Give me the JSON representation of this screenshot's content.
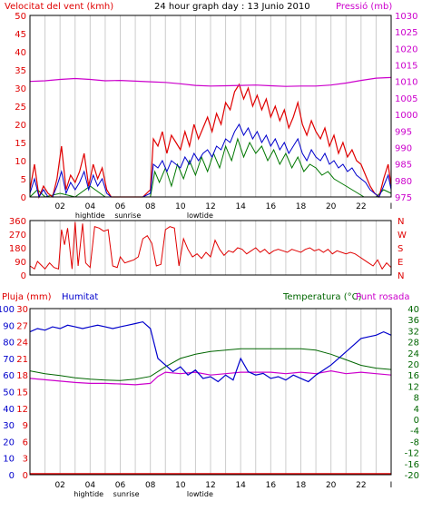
{
  "header": {
    "wind_title": "Velocitat del vent (kmh)",
    "graph_title": "24 hour graph day : 13 Junio 2010",
    "pressure_title": "Pressió (mb)"
  },
  "colors": {
    "wind_speed": "#e00000",
    "wind_avg": "#0000cc",
    "wind_green": "#007700",
    "pressure": "#cc00cc",
    "direction": "#e00000",
    "humidity": "#0000cc",
    "temperature": "#006600",
    "dewpoint": "#cc00cc",
    "rain": "#e00000",
    "grid_vertical": "#cccccc",
    "axis": "#000000"
  },
  "x_ticks": [
    "02",
    "04",
    "06",
    "08",
    "10",
    "12",
    "14",
    "16",
    "18",
    "20",
    "22",
    "I"
  ],
  "tide_labels_top": [
    {
      "text": "hightide",
      "hour": 4.0
    },
    {
      "text": "sunrise",
      "hour": 6.5
    },
    {
      "text": "lowtide",
      "hour": 11.3
    }
  ],
  "tide_labels_bottom": [
    {
      "text": "hightide",
      "hour": 3.9
    },
    {
      "text": "sunrise",
      "hour": 6.4
    },
    {
      "text": "lowtide",
      "hour": 11.3
    }
  ],
  "chart_data": [
    {
      "type": "line",
      "title": "24 hour graph day : 13 Junio 2010",
      "ylabel_left": "Velocitat del vent (kmh)",
      "ylabel_right": "Pressió (mb)",
      "ylim_left": [
        0,
        50
      ],
      "yticks_left": [
        "0",
        "5",
        "10",
        "15",
        "20",
        "25",
        "30",
        "35",
        "40",
        "45",
        "50"
      ],
      "ylim_right": [
        975,
        1030
      ],
      "yticks_right": [
        "975",
        "980",
        "985",
        "990",
        "995",
        "1000",
        "1005",
        "1010",
        "1015",
        "1020",
        "1025",
        "1030"
      ],
      "xlim": [
        0,
        24
      ],
      "series": [
        {
          "name": "wind_speed",
          "x": [
            0,
            0.3,
            0.6,
            0.9,
            1.2,
            1.5,
            1.8,
            2.1,
            2.4,
            2.7,
            3.0,
            3.3,
            3.6,
            3.9,
            4.2,
            4.5,
            4.8,
            5.1,
            5.4,
            5.7,
            6.0,
            6.5,
            7.0,
            7.5,
            8.0,
            8.2,
            8.5,
            8.8,
            9.1,
            9.4,
            9.7,
            10.0,
            10.3,
            10.6,
            10.9,
            11.2,
            11.5,
            11.8,
            12.1,
            12.4,
            12.7,
            13.0,
            13.3,
            13.6,
            13.9,
            14.2,
            14.5,
            14.8,
            15.1,
            15.4,
            15.7,
            16.0,
            16.3,
            16.6,
            16.9,
            17.2,
            17.5,
            17.8,
            18.1,
            18.4,
            18.7,
            19.0,
            19.3,
            19.6,
            19.9,
            20.2,
            20.5,
            20.8,
            21.1,
            21.4,
            21.7,
            22.0,
            22.3,
            22.6,
            22.9,
            23.2,
            23.5,
            23.8,
            24.0
          ],
          "values": [
            2,
            9,
            0,
            3,
            1,
            0,
            5,
            14,
            2,
            6,
            4,
            7,
            12,
            3,
            9,
            5,
            8,
            2,
            0,
            0,
            0,
            0,
            0,
            0,
            2,
            16,
            14,
            18,
            12,
            17,
            15,
            13,
            18,
            14,
            20,
            16,
            19,
            22,
            18,
            23,
            20,
            26,
            24,
            29,
            31,
            27,
            30,
            25,
            28,
            24,
            27,
            22,
            25,
            21,
            24,
            19,
            22,
            26,
            20,
            17,
            21,
            18,
            16,
            19,
            14,
            17,
            12,
            15,
            11,
            13,
            10,
            9,
            6,
            3,
            1,
            0,
            5,
            9,
            3
          ]
        },
        {
          "name": "wind_avg",
          "x": [
            0,
            0.3,
            0.6,
            0.9,
            1.2,
            1.5,
            1.8,
            2.1,
            2.4,
            2.7,
            3.0,
            3.3,
            3.6,
            3.9,
            4.2,
            4.5,
            4.8,
            5.1,
            5.4,
            5.7,
            6.0,
            6.5,
            7.0,
            7.5,
            8.0,
            8.2,
            8.5,
            8.8,
            9.1,
            9.4,
            9.7,
            10.0,
            10.3,
            10.6,
            10.9,
            11.2,
            11.5,
            11.8,
            12.1,
            12.4,
            12.7,
            13.0,
            13.3,
            13.6,
            13.9,
            14.2,
            14.5,
            14.8,
            15.1,
            15.4,
            15.7,
            16.0,
            16.3,
            16.6,
            16.9,
            17.2,
            17.5,
            17.8,
            18.1,
            18.4,
            18.7,
            19.0,
            19.3,
            19.6,
            19.9,
            20.2,
            20.5,
            20.8,
            21.1,
            21.4,
            21.7,
            22.0,
            22.3,
            22.6,
            22.9,
            23.2,
            23.5,
            23.8,
            24.0
          ],
          "values": [
            1,
            5,
            0,
            2,
            0,
            0,
            3,
            7,
            1,
            4,
            2,
            4,
            7,
            2,
            6,
            3,
            5,
            1,
            0,
            0,
            0,
            0,
            0,
            0,
            1,
            9,
            8,
            10,
            7,
            10,
            9,
            8,
            11,
            9,
            12,
            10,
            12,
            13,
            11,
            14,
            13,
            16,
            15,
            18,
            20,
            17,
            19,
            16,
            18,
            15,
            17,
            14,
            16,
            13,
            15,
            12,
            14,
            16,
            12,
            10,
            13,
            11,
            10,
            12,
            9,
            10,
            8,
            9,
            7,
            8,
            6,
            5,
            4,
            2,
            1,
            0,
            3,
            6,
            2
          ]
        },
        {
          "name": "wind_green",
          "x": [
            0,
            0.5,
            1.0,
            2.0,
            3.0,
            4.0,
            5.0,
            6.0,
            7.0,
            8.0,
            8.3,
            8.6,
            9.0,
            9.4,
            9.8,
            10.2,
            10.6,
            11.0,
            11.4,
            11.8,
            12.2,
            12.6,
            13.0,
            13.4,
            13.8,
            14.2,
            14.6,
            15.0,
            15.4,
            15.8,
            16.2,
            16.6,
            17.0,
            17.4,
            17.8,
            18.2,
            18.6,
            19.0,
            19.4,
            19.8,
            20.2,
            20.6,
            21.0,
            21.4,
            21.8,
            22.2,
            22.6,
            23.0,
            23.5,
            24.0
          ],
          "values": [
            0,
            2,
            0,
            1,
            0,
            3,
            0,
            0,
            0,
            0,
            7,
            4,
            8,
            3,
            9,
            5,
            10,
            6,
            11,
            7,
            12,
            8,
            14,
            10,
            16,
            11,
            15,
            12,
            14,
            10,
            13,
            9,
            12,
            8,
            11,
            7,
            9,
            8,
            6,
            7,
            5,
            4,
            3,
            2,
            1,
            0,
            0,
            0,
            2,
            1
          ]
        },
        {
          "name": "pressure",
          "x": [
            0,
            1,
            2,
            3,
            4,
            5,
            6,
            7,
            8,
            9,
            10,
            11,
            12,
            13,
            14,
            15,
            16,
            17,
            18,
            19,
            20,
            21,
            22,
            23,
            24
          ],
          "values": [
            1010.0,
            1010.2,
            1010.6,
            1010.9,
            1010.6,
            1010.2,
            1010.3,
            1010.1,
            1009.9,
            1009.7,
            1009.3,
            1008.8,
            1008.6,
            1008.7,
            1008.8,
            1008.9,
            1008.7,
            1008.5,
            1008.6,
            1008.6,
            1008.9,
            1009.5,
            1010.3,
            1011.0,
            1011.2
          ]
        }
      ]
    },
    {
      "type": "line",
      "ylim_left": [
        0,
        360
      ],
      "yticks_left": [
        "0",
        "90",
        "180",
        "270",
        "360"
      ],
      "yticks_right": [
        "N",
        "E",
        "S",
        "W",
        "N"
      ],
      "xlim": [
        0,
        24
      ],
      "series": [
        {
          "name": "wind_direction",
          "x": [
            0,
            0.3,
            0.5,
            0.8,
            1.0,
            1.3,
            1.6,
            1.9,
            2.1,
            2.3,
            2.5,
            2.8,
            3.0,
            3.2,
            3.5,
            3.7,
            4.0,
            4.3,
            4.6,
            4.9,
            5.2,
            5.5,
            5.8,
            6.0,
            6.3,
            6.6,
            6.9,
            7.2,
            7.5,
            7.8,
            8.1,
            8.4,
            8.7,
            9.0,
            9.3,
            9.6,
            9.9,
            10.2,
            10.5,
            10.8,
            11.1,
            11.4,
            11.7,
            12.0,
            12.3,
            12.6,
            12.9,
            13.2,
            13.5,
            13.8,
            14.1,
            14.4,
            14.7,
            15.0,
            15.3,
            15.6,
            15.9,
            16.2,
            16.5,
            16.8,
            17.1,
            17.4,
            17.7,
            18.0,
            18.3,
            18.6,
            18.9,
            19.2,
            19.5,
            19.8,
            20.1,
            20.4,
            20.7,
            21.0,
            21.3,
            21.6,
            21.9,
            22.2,
            22.5,
            22.8,
            23.1,
            23.4,
            23.7,
            24.0
          ],
          "values": [
            60,
            40,
            90,
            60,
            40,
            80,
            50,
            40,
            300,
            200,
            310,
            40,
            350,
            60,
            340,
            80,
            50,
            320,
            310,
            290,
            300,
            60,
            50,
            120,
            80,
            90,
            100,
            120,
            240,
            260,
            210,
            60,
            70,
            300,
            320,
            310,
            60,
            240,
            170,
            120,
            140,
            110,
            150,
            120,
            230,
            170,
            130,
            160,
            150,
            180,
            170,
            140,
            160,
            180,
            150,
            170,
            140,
            160,
            170,
            160,
            150,
            170,
            160,
            150,
            170,
            180,
            160,
            170,
            150,
            170,
            140,
            160,
            150,
            140,
            150,
            140,
            120,
            100,
            80,
            60,
            100,
            40,
            80,
            50
          ]
        }
      ]
    },
    {
      "type": "line",
      "ylabel_left_1": "Pluja (mm)",
      "ylabel_left_2": "Humitat",
      "ylabel_right": "Temperatura (°C)",
      "ylabel_right_2": "Punt rosada",
      "yticks_humidity": [
        "0",
        "10",
        "20",
        "30",
        "40",
        "50",
        "60",
        "70",
        "80",
        "90",
        "100"
      ],
      "yticks_rain": [
        "0",
        "3",
        "6",
        "9",
        "12",
        "15",
        "18",
        "21",
        "24",
        "27",
        "30"
      ],
      "yticks_temp": [
        "-20",
        "-16",
        "-12",
        "-8",
        "-4",
        "0",
        "4",
        "8",
        "12",
        "16",
        "20",
        "24",
        "28",
        "32",
        "36",
        "40"
      ],
      "ylim_humidity": [
        0,
        100
      ],
      "ylim_temp": [
        -20,
        40
      ],
      "xlim": [
        0,
        24
      ],
      "series": [
        {
          "name": "humidity",
          "x": [
            0,
            0.5,
            1,
            1.5,
            2,
            2.5,
            3,
            3.5,
            4,
            4.5,
            5,
            5.5,
            6,
            6.5,
            7,
            7.5,
            8,
            8.5,
            9,
            9.5,
            10,
            10.5,
            11,
            11.5,
            12,
            12.5,
            13,
            13.5,
            14,
            14.5,
            15,
            15.5,
            16,
            16.5,
            17,
            17.5,
            18,
            18.5,
            19,
            19.5,
            20,
            20.5,
            21,
            21.5,
            22,
            22.5,
            23,
            23.5,
            24
          ],
          "values": [
            86,
            88,
            87,
            89,
            88,
            90,
            89,
            88,
            89,
            90,
            89,
            88,
            89,
            90,
            91,
            92,
            88,
            70,
            66,
            62,
            65,
            60,
            63,
            58,
            59,
            56,
            60,
            57,
            70,
            62,
            60,
            61,
            58,
            59,
            57,
            60,
            58,
            56,
            60,
            63,
            66,
            70,
            74,
            78,
            82,
            83,
            84,
            86,
            84
          ]
        },
        {
          "name": "temperature",
          "x": [
            0,
            1,
            2,
            3,
            4,
            5,
            6,
            7,
            8,
            9,
            10,
            11,
            12,
            13,
            14,
            15,
            16,
            17,
            18,
            19,
            20,
            21,
            22,
            23,
            24
          ],
          "values": [
            17.5,
            16.5,
            15.8,
            15.0,
            14.5,
            14.2,
            14.0,
            14.5,
            15.5,
            19.0,
            22.0,
            23.5,
            24.5,
            25.0,
            25.5,
            25.5,
            25.5,
            25.5,
            25.5,
            25.0,
            23.5,
            21.5,
            19.5,
            18.5,
            18.0
          ]
        },
        {
          "name": "dewpoint",
          "x": [
            0,
            1,
            2,
            3,
            4,
            5,
            6,
            7,
            8,
            8.5,
            9,
            10,
            11,
            12,
            13,
            14,
            15,
            16,
            17,
            18,
            19,
            20,
            21,
            22,
            23,
            24
          ],
          "values": [
            14.8,
            14.3,
            13.8,
            13.3,
            13.0,
            13.0,
            12.8,
            12.5,
            13.0,
            15.5,
            17.0,
            16.5,
            17.0,
            16.0,
            16.5,
            17.0,
            17.0,
            17.0,
            16.5,
            17.0,
            16.5,
            17.5,
            16.5,
            17.0,
            16.5,
            16.0
          ]
        },
        {
          "name": "rain",
          "x": [
            0,
            24
          ],
          "values": [
            0,
            0
          ]
        }
      ]
    }
  ]
}
